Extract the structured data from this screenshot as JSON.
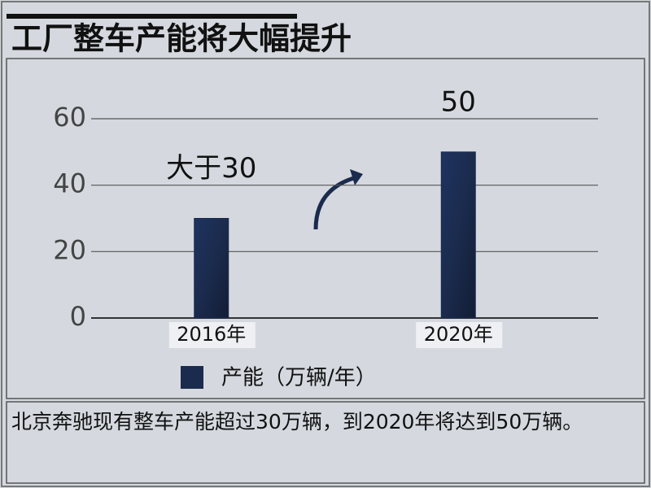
{
  "chart_data": {
    "type": "bar",
    "title": "工厂整车产能将大幅提升",
    "categories": [
      "2016年",
      "2020年"
    ],
    "series": [
      {
        "name": "产能（万辆/年）",
        "color": "#1b2b4d",
        "values": [
          30,
          50
        ],
        "value_labels": [
          "大于30",
          "50"
        ]
      }
    ],
    "ylim": [
      0,
      60
    ],
    "yticks": [
      0,
      20,
      40,
      60
    ],
    "grid": true,
    "legend": "bottom",
    "note": "北京奔驰现有整车产能超过30万辆，到2020年将达到50万辆。"
  }
}
